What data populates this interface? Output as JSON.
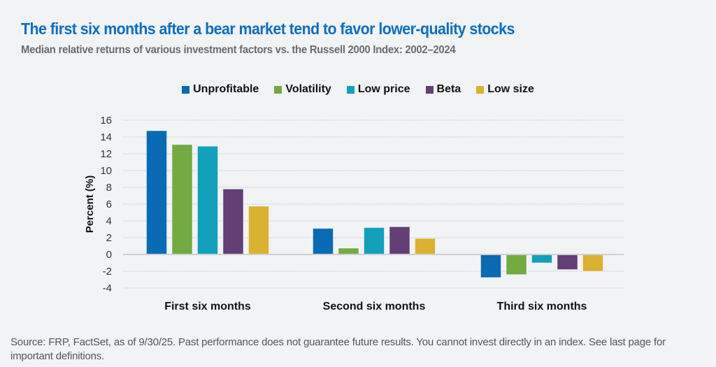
{
  "header": {
    "title": "The first six months after a bear market tend to favor lower-quality stocks",
    "subtitle": "Median relative returns of various investment factors vs. the Russell 2000 Index: 2002–2024"
  },
  "footer": {
    "source": "Source: FRP, FactSet, as of 9/30/25. Past performance does not guarantee future results. You cannot invest directly in an index. See last page for important definitions."
  },
  "chart_data": {
    "type": "bar",
    "title": "The first six months after a bear market tend to favor lower-quality stocks",
    "subtitle": "Median relative returns of various investment factors vs. the Russell 2000 Index: 2002–2024",
    "xlabel": "",
    "ylabel": "Percent (%)",
    "ylim": [
      -4,
      16
    ],
    "yticks": [
      16,
      14,
      12,
      10,
      8,
      6,
      4,
      2,
      0,
      -2,
      -4
    ],
    "grid": true,
    "legend_position": "top-center",
    "categories": [
      "First six months",
      "Second six months",
      "Third six months"
    ],
    "series": [
      {
        "name": "Unprofitable",
        "color": "#0a6ab3",
        "values": [
          14.75,
          3.1,
          -2.75
        ]
      },
      {
        "name": "Volatility",
        "color": "#74aa42",
        "values": [
          13.1,
          0.75,
          -2.4
        ]
      },
      {
        "name": "Low price",
        "color": "#13a0bb",
        "values": [
          12.9,
          3.2,
          -1.0
        ]
      },
      {
        "name": "Beta",
        "color": "#633f75",
        "values": [
          7.8,
          3.3,
          -1.8
        ]
      },
      {
        "name": "Low size",
        "color": "#dab131",
        "values": [
          5.75,
          1.9,
          -2.0
        ]
      }
    ]
  }
}
